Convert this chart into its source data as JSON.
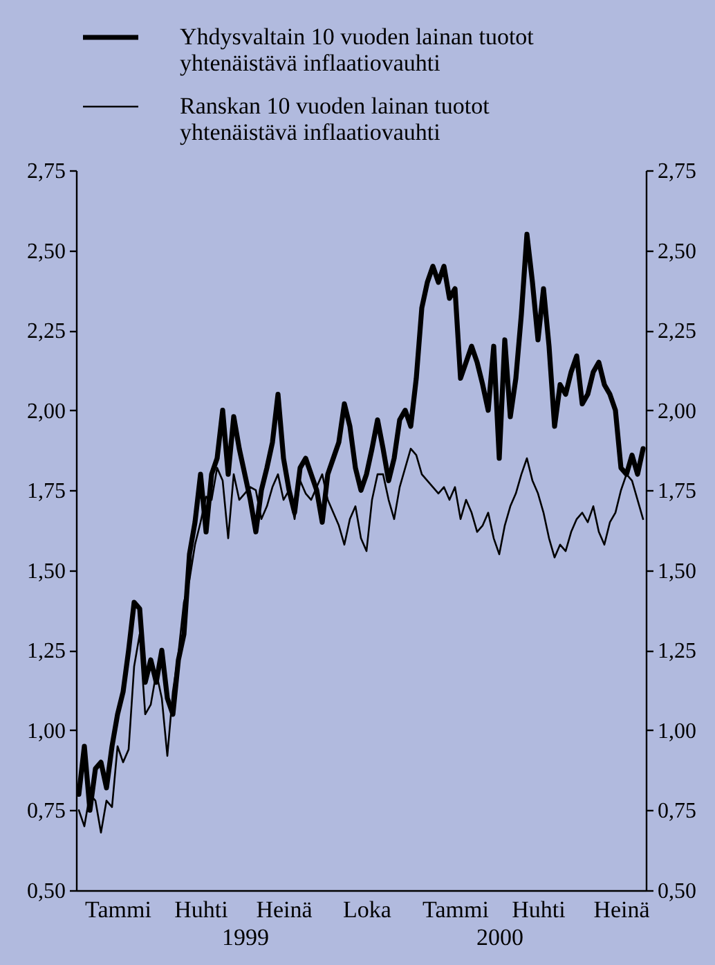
{
  "chart_data": {
    "type": "line",
    "categories": [
      null,
      null,
      null,
      null,
      null,
      null,
      null,
      "Tammi",
      null,
      null,
      null,
      null,
      null,
      null,
      null,
      null,
      null,
      null,
      null,
      null,
      null,
      null,
      "Huhti",
      null,
      null,
      null,
      null,
      null,
      null,
      null,
      "1999",
      null,
      null,
      null,
      null,
      null,
      null,
      "Heinä",
      null,
      null,
      null,
      null,
      null,
      null,
      null,
      null,
      null,
      null,
      null,
      null,
      null,
      null,
      "Loka",
      null,
      null,
      null,
      null,
      null,
      null,
      null,
      null,
      null,
      null,
      null,
      null,
      null,
      null,
      null,
      "Tammi",
      null,
      null,
      null,
      null,
      null,
      null,
      null,
      "2000",
      null,
      null,
      null,
      null,
      null,
      null,
      "Huhti",
      null,
      null,
      null,
      null,
      null,
      null,
      null,
      null,
      null,
      null,
      null,
      null,
      null,
      null,
      "Heinä",
      null,
      null,
      null,
      null
    ],
    "series": [
      {
        "name": "Yhdysvaltain 10 vuoden lainan tuotot yhtenäistävä inflaatiovauhti",
        "color": "#000000",
        "values": [
          0.8,
          0.95,
          0.75,
          0.88,
          0.9,
          0.82,
          0.95,
          1.05,
          1.12,
          1.25,
          1.4,
          1.38,
          1.15,
          1.22,
          1.15,
          1.25,
          1.1,
          1.05,
          1.22,
          1.3,
          1.55,
          1.65,
          1.8,
          1.62,
          1.8,
          1.85,
          2.0,
          1.8,
          1.98,
          1.88,
          1.8,
          1.72,
          1.62,
          1.75,
          1.82,
          1.9,
          2.05,
          1.85,
          1.75,
          1.68,
          1.82,
          1.85,
          1.8,
          1.75,
          1.65,
          1.8,
          1.85,
          1.9,
          2.02,
          1.95,
          1.82,
          1.75,
          1.8,
          1.88,
          1.97,
          1.88,
          1.78,
          1.85,
          1.97,
          2.0,
          1.95,
          2.1,
          2.32,
          2.4,
          2.45,
          2.4,
          2.45,
          2.35,
          2.38,
          2.1,
          2.15,
          2.2,
          2.15,
          2.08,
          2.0,
          2.2,
          1.85,
          2.22,
          1.98,
          2.1,
          2.3,
          2.55,
          2.4,
          2.22,
          2.38,
          2.2,
          1.95,
          2.08,
          2.05,
          2.12,
          2.17,
          2.02,
          2.05,
          2.12,
          2.15,
          2.08,
          2.05,
          2.0,
          1.82,
          1.8,
          1.86,
          1.8,
          1.88
        ]
      },
      {
        "name": "Ranskan 10 vuoden lainan tuotot yhtenäistävä inflaatiovauhti",
        "color": "#000000",
        "values": [
          0.75,
          0.7,
          0.8,
          0.78,
          0.68,
          0.78,
          0.76,
          0.95,
          0.9,
          0.94,
          1.2,
          1.3,
          1.05,
          1.08,
          1.18,
          1.1,
          0.92,
          1.12,
          1.24,
          1.4,
          1.47,
          1.58,
          1.65,
          1.73,
          1.72,
          1.82,
          1.78,
          1.6,
          1.8,
          1.72,
          1.74,
          1.76,
          1.75,
          1.66,
          1.7,
          1.76,
          1.8,
          1.72,
          1.75,
          1.66,
          1.78,
          1.74,
          1.72,
          1.76,
          1.8,
          1.72,
          1.68,
          1.64,
          1.58,
          1.66,
          1.7,
          1.6,
          1.56,
          1.72,
          1.8,
          1.8,
          1.72,
          1.66,
          1.76,
          1.82,
          1.88,
          1.86,
          1.8,
          1.78,
          1.76,
          1.74,
          1.76,
          1.72,
          1.76,
          1.66,
          1.72,
          1.68,
          1.62,
          1.64,
          1.68,
          1.6,
          1.55,
          1.64,
          1.7,
          1.74,
          1.8,
          1.85,
          1.78,
          1.74,
          1.68,
          1.6,
          1.54,
          1.58,
          1.56,
          1.62,
          1.66,
          1.68,
          1.65,
          1.7,
          1.62,
          1.58,
          1.65,
          1.68,
          1.75,
          1.8,
          1.78,
          1.72,
          1.66
        ]
      }
    ],
    "ylim": [
      0.5,
      2.75
    ],
    "yticks": [
      {
        "value": 0.5,
        "label": "0,50"
      },
      {
        "value": 0.75,
        "label": "0,75"
      },
      {
        "value": 1,
        "label": "1,00"
      },
      {
        "value": 1.25,
        "label": "1,25"
      },
      {
        "value": 1.5,
        "label": "1,50"
      },
      {
        "value": 1.75,
        "label": "1,75"
      },
      {
        "value": 2,
        "label": "2,00"
      },
      {
        "value": 2.25,
        "label": "2,25"
      },
      {
        "value": 2.5,
        "label": "2,50"
      },
      {
        "value": 2.75,
        "label": "2,75"
      }
    ],
    "y2lim": [
      0.5,
      2.75
    ],
    "y2ticks": [
      {
        "value": 0.5,
        "label": "0,50"
      },
      {
        "value": 0.75,
        "label": "0,75"
      },
      {
        "value": 1,
        "label": "1,00"
      },
      {
        "value": 1.25,
        "label": "1,25"
      },
      {
        "value": 1.5,
        "label": "1,50"
      },
      {
        "value": 1.75,
        "label": "1,75"
      },
      {
        "value": 2,
        "label": "2,00"
      },
      {
        "value": 2.25,
        "label": "2,25"
      },
      {
        "value": 2.5,
        "label": "2,50"
      },
      {
        "value": 2.75,
        "label": "2,75"
      }
    ],
    "legend": "top left",
    "marker": "none",
    "line_style": "solid"
  }
}
